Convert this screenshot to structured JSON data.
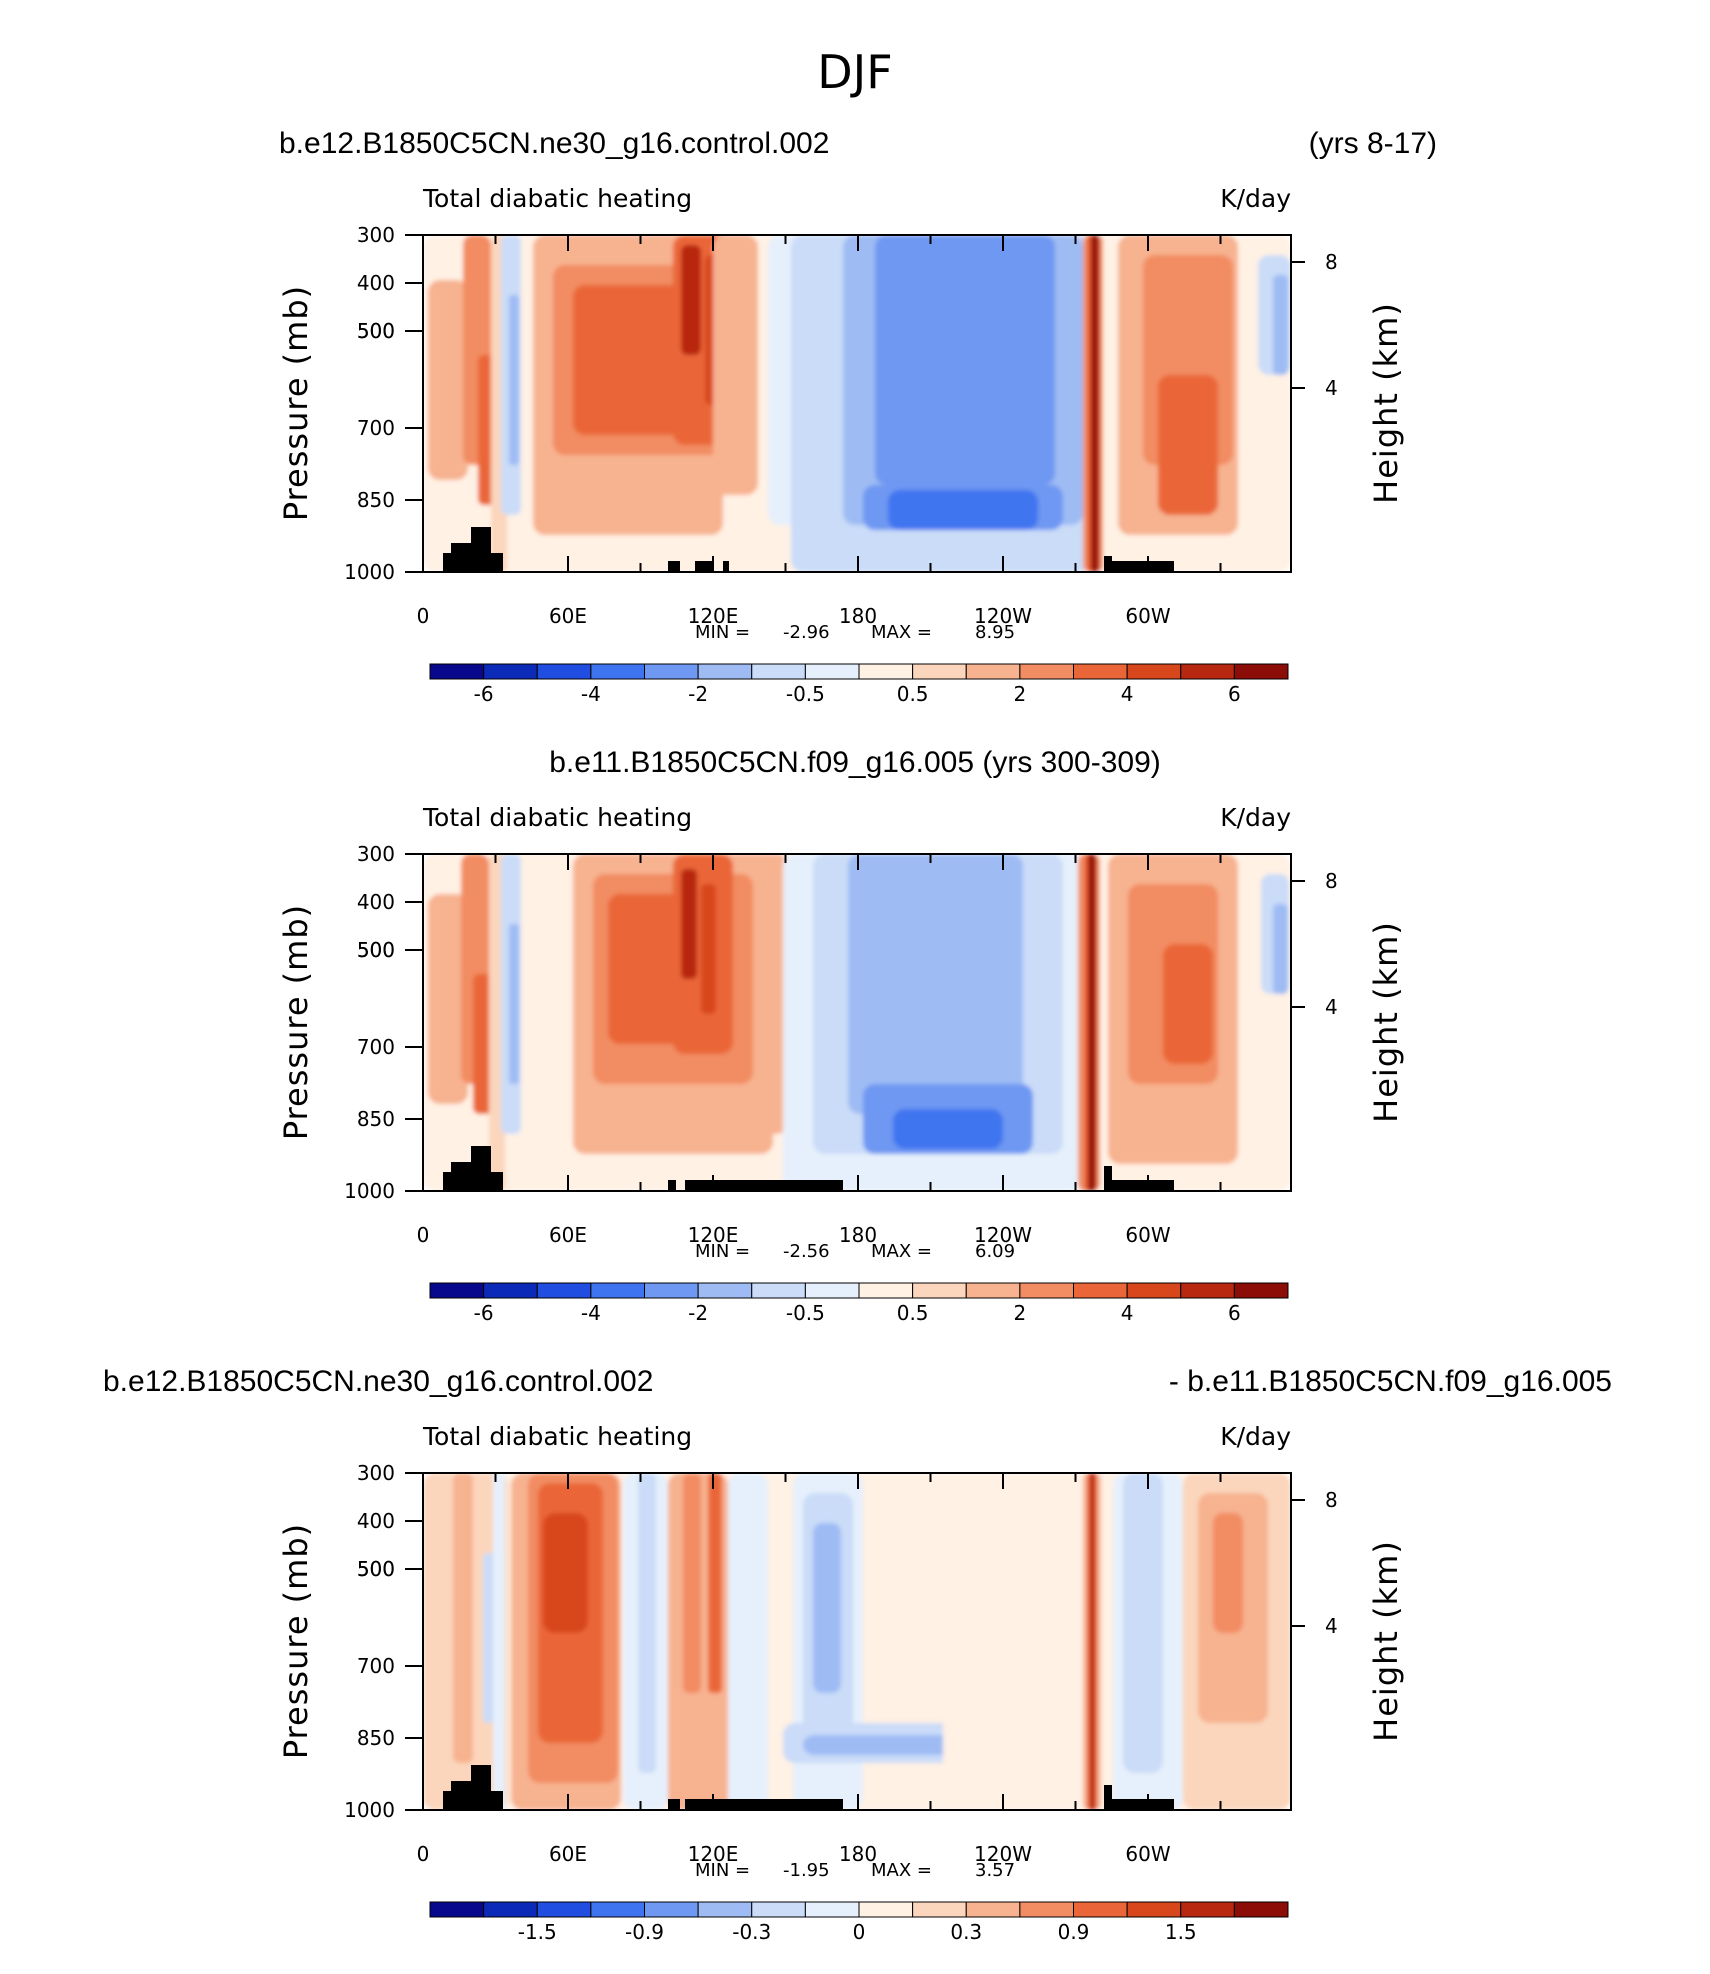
{
  "title": "DJF",
  "colors": {
    "scale": [
      "#08088c",
      "#0c2ab8",
      "#1f4ee0",
      "#3f74f0",
      "#6e98f2",
      "#9ebbf4",
      "#cadcf8",
      "#e6f0fc",
      "#fff1e4",
      "#fbd6bc",
      "#f7b290",
      "#f28c62",
      "#ea6638",
      "#d8461c",
      "#b82810",
      "#8c0c08"
    ],
    "land": "#000000"
  },
  "chart_data": [
    {
      "type": "contour",
      "header_left": "b.e12.B1850C5CN.ne30_g16.control.002",
      "header_right": "(yrs 8-17)",
      "subtitle_left": "Total diabatic heating",
      "subtitle_right": "K/day",
      "ylabel": "Pressure (mb)",
      "y2label": "Height (km)",
      "y_ticks": [
        "300",
        "400",
        "500",
        "500",
        "700",
        "850",
        "1000"
      ],
      "y2_ticks": [
        "8",
        "4"
      ],
      "x_ticks": [
        "0",
        "60E",
        "120E",
        "180",
        "120W",
        "60W"
      ],
      "min_label": "MIN =",
      "min_value": "-2.96",
      "max_label": "MAX =",
      "max_value": "8.95",
      "colorbar_labels": [
        "-6",
        "-4",
        "-2",
        "-0.5",
        "0.5",
        "2",
        "4",
        "6"
      ]
    },
    {
      "type": "contour",
      "header_center": "b.e11.B1850C5CN.f09_g16.005 (yrs 300-309)",
      "subtitle_left": "Total diabatic heating",
      "subtitle_right": "K/day",
      "ylabel": "Pressure (mb)",
      "y2label": "Height (km)",
      "y_ticks": [
        "300",
        "400",
        "500",
        "500",
        "700",
        "850",
        "1000"
      ],
      "y2_ticks": [
        "8",
        "4"
      ],
      "x_ticks": [
        "0",
        "60E",
        "120E",
        "180",
        "120W",
        "60W"
      ],
      "min_label": "MIN =",
      "min_value": "-2.56",
      "max_label": "MAX =",
      "max_value": "6.09",
      "colorbar_labels": [
        "-6",
        "-4",
        "-2",
        "-0.5",
        "0.5",
        "2",
        "4",
        "6"
      ]
    },
    {
      "type": "contour",
      "header_left": "b.e12.B1850C5CN.ne30_g16.control.002",
      "header_right": "- b.e11.B1850C5CN.f09_g16.005",
      "subtitle_left": "Total diabatic heating",
      "subtitle_right": "K/day",
      "ylabel": "Pressure (mb)",
      "y2label": "Height (km)",
      "y_ticks": [
        "300",
        "400",
        "500",
        "500",
        "700",
        "850",
        "1000"
      ],
      "y2_ticks": [
        "8",
        "4"
      ],
      "x_ticks": [
        "0",
        "60E",
        "120E",
        "180",
        "120W",
        "60W"
      ],
      "min_label": "MIN =",
      "min_value": "-1.95",
      "max_label": "MAX =",
      "max_value": "3.57",
      "colorbar_labels": [
        "-1.5",
        "-0.9",
        "-0.3",
        "0",
        "0.3",
        "0.9",
        "1.5"
      ]
    }
  ]
}
